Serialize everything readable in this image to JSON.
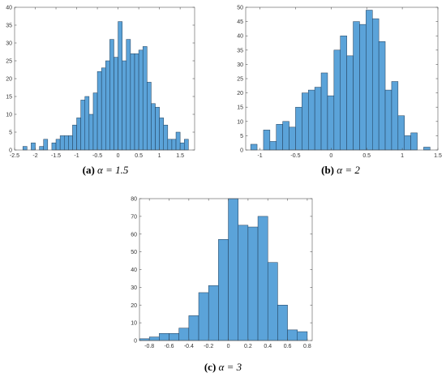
{
  "chart_data": [
    {
      "type": "histogram",
      "caption_label": "(a)",
      "caption": "α = 1.5",
      "color": "#5ba3d9",
      "edge_color": "#1f3a55",
      "bins": [
        -2.3,
        -2.2,
        -2.1,
        -2.0,
        -1.9,
        -1.8,
        -1.7,
        -1.6,
        -1.5,
        -1.4,
        -1.3,
        -1.2,
        -1.1,
        -1.0,
        -0.9,
        -0.8,
        -0.7,
        -0.6,
        -0.5,
        -0.4,
        -0.3,
        -0.2,
        -0.1,
        0,
        0.1,
        0.2,
        0.3,
        0.4,
        0.5,
        0.6,
        0.7,
        0.8,
        0.9,
        1.0,
        1.1,
        1.2,
        1.3,
        1.4,
        1.5,
        1.6,
        1.7
      ],
      "counts": [
        1,
        0,
        2,
        0,
        1,
        3,
        0,
        2,
        3,
        4,
        4,
        4,
        7,
        9,
        14,
        15,
        10,
        16,
        22,
        23,
        25,
        31,
        26,
        36,
        25,
        31,
        27,
        27,
        28,
        29,
        19,
        13,
        12,
        9,
        7,
        3,
        3,
        5,
        2,
        3
      ],
      "xlim": [
        -2.5,
        1.85
      ],
      "ylim": [
        0,
        40
      ],
      "xticks": [
        -2.5,
        -2,
        -1.5,
        -1,
        -0.5,
        0,
        0.5,
        1,
        1.5
      ],
      "yticks": [
        0,
        5,
        10,
        15,
        20,
        25,
        30,
        35,
        40
      ]
    },
    {
      "type": "histogram",
      "caption_label": "(b)",
      "caption": "α = 2",
      "color": "#5ba3d9",
      "edge_color": "#1f3a55",
      "bins": [
        -1.13,
        -1.04,
        -0.95,
        -0.86,
        -0.77,
        -0.68,
        -0.59,
        -0.5,
        -0.41,
        -0.32,
        -0.23,
        -0.14,
        -0.05,
        0.04,
        0.13,
        0.22,
        0.31,
        0.4,
        0.49,
        0.58,
        0.67,
        0.76,
        0.85,
        0.94,
        1.03,
        1.12,
        1.21,
        1.3,
        1.39
      ],
      "counts": [
        2,
        0,
        7,
        3,
        9,
        10,
        8,
        15,
        20,
        21,
        22,
        27,
        19,
        35,
        40,
        33,
        45,
        44,
        49,
        46,
        38,
        21,
        24,
        12,
        5,
        6,
        0,
        1
      ],
      "xlim": [
        -1.2,
        1.5
      ],
      "ylim": [
        0,
        50
      ],
      "xticks": [
        -1,
        -0.5,
        0,
        0.5,
        1,
        1.5
      ],
      "yticks": [
        0,
        5,
        10,
        15,
        20,
        25,
        30,
        35,
        40,
        45,
        50
      ]
    },
    {
      "type": "histogram",
      "caption_label": "(c)",
      "caption": "α = 3",
      "color": "#5ba3d9",
      "edge_color": "#1f3a55",
      "bins": [
        -0.9,
        -0.8,
        -0.7,
        -0.6,
        -0.5,
        -0.4,
        -0.3,
        -0.2,
        -0.1,
        0,
        0.1,
        0.2,
        0.3,
        0.4,
        0.5,
        0.6,
        0.7,
        0.8
      ],
      "counts": [
        1,
        2,
        4,
        4,
        7,
        14,
        27,
        31,
        57,
        80,
        65,
        64,
        70,
        44,
        20,
        6,
        5
      ],
      "xlim": [
        -0.9,
        0.85
      ],
      "ylim": [
        0,
        80
      ],
      "xticks": [
        -0.8,
        -0.6,
        -0.4,
        -0.2,
        0,
        0.2,
        0.4,
        0.6,
        0.8
      ],
      "yticks": [
        0,
        10,
        20,
        30,
        40,
        50,
        60,
        70,
        80
      ]
    }
  ]
}
